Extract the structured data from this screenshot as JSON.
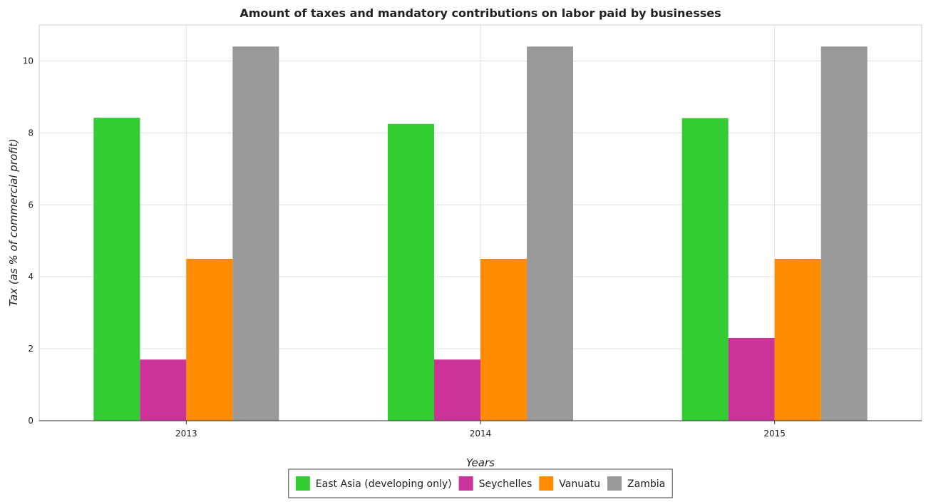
{
  "chart_data": {
    "type": "bar",
    "title": "Amount of taxes and mandatory contributions on labor paid by businesses",
    "xlabel": "Years",
    "ylabel": "Tax (as % of commercial profit)",
    "categories": [
      "2013",
      "2014",
      "2015"
    ],
    "ylim": [
      0,
      11
    ],
    "yticks": [
      0,
      2,
      4,
      6,
      8,
      10
    ],
    "grid": true,
    "legend_position": "bottom",
    "series": [
      {
        "name": "East Asia (developing only)",
        "color": "#33cc33",
        "values": [
          8.42,
          8.25,
          8.41
        ]
      },
      {
        "name": "Seychelles",
        "color": "#cc3399",
        "values": [
          1.7,
          1.7,
          2.3
        ]
      },
      {
        "name": "Vanuatu",
        "color": "#ff8c00",
        "values": [
          4.5,
          4.5,
          4.5
        ]
      },
      {
        "name": "Zambia",
        "color": "#999999",
        "values": [
          10.4,
          10.4,
          10.4
        ]
      }
    ]
  }
}
